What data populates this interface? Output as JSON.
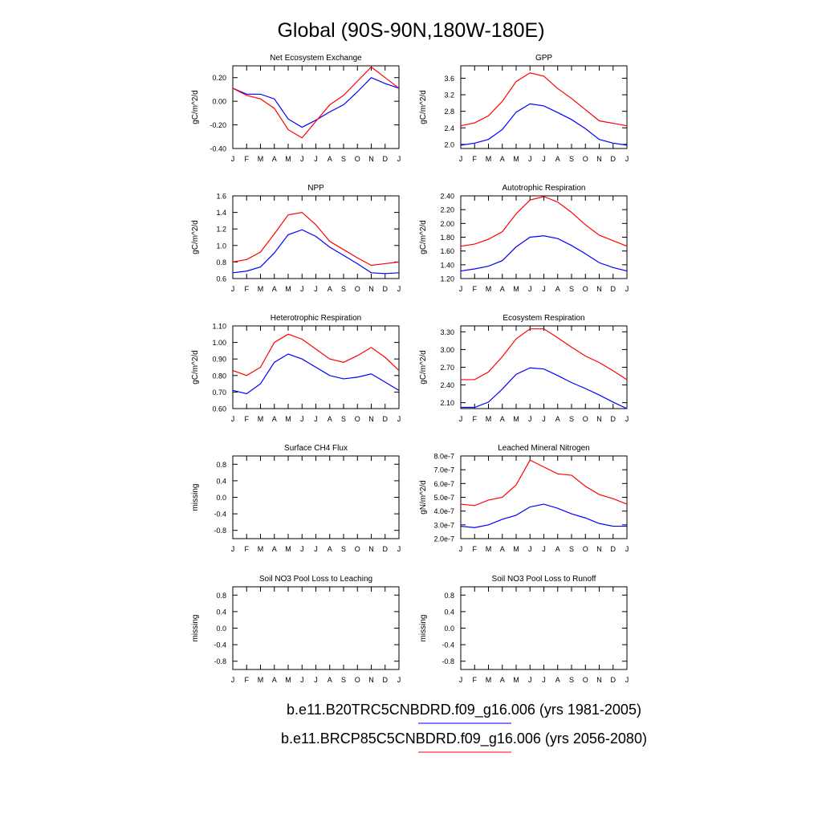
{
  "title": "Global (90S-90N,180W-180E)",
  "legend": [
    {
      "label": "b.e11.B20TRC5CNBDRD.f09_g16.006 (yrs 1981-2005)",
      "color": "#0000ff"
    },
    {
      "label": "b.e11.BRCP85C5CNBDRD.f09_g16.006 (yrs 2056-2080)",
      "color": "#ff0000"
    }
  ],
  "chart_data": [
    {
      "type": "line",
      "title": "Net Ecosystem Exchange",
      "ylabel": "gC/m^2/d",
      "categories": [
        "J",
        "F",
        "M",
        "A",
        "M",
        "J",
        "J",
        "A",
        "S",
        "O",
        "N",
        "D",
        "J"
      ],
      "ylim": [
        -0.4,
        0.3
      ],
      "yticks": [
        -0.4,
        -0.2,
        0.0,
        0.2
      ],
      "yticklabels": [
        "-0.40",
        "-0.20",
        "0.00",
        "0.20"
      ],
      "series": [
        {
          "color": "#0000ff",
          "values": [
            0.11,
            0.06,
            0.06,
            0.02,
            -0.15,
            -0.22,
            -0.16,
            -0.09,
            -0.03,
            0.08,
            0.2,
            0.15,
            0.11
          ]
        },
        {
          "color": "#ff0000",
          "values": [
            0.11,
            0.05,
            0.02,
            -0.06,
            -0.24,
            -0.31,
            -0.17,
            -0.03,
            0.05,
            0.17,
            0.29,
            0.2,
            0.11
          ]
        }
      ]
    },
    {
      "type": "line",
      "title": "GPP",
      "ylabel": "gC/m^2/d",
      "categories": [
        "J",
        "F",
        "M",
        "A",
        "M",
        "J",
        "J",
        "A",
        "S",
        "O",
        "N",
        "D",
        "J"
      ],
      "ylim": [
        1.9,
        3.9
      ],
      "yticks": [
        2.0,
        2.4,
        2.8,
        3.2,
        3.6
      ],
      "yticklabels": [
        "2.0",
        "2.4",
        "2.8",
        "3.2",
        "3.6"
      ],
      "series": [
        {
          "color": "#0000ff",
          "values": [
            1.98,
            2.03,
            2.12,
            2.36,
            2.78,
            2.98,
            2.93,
            2.77,
            2.6,
            2.38,
            2.12,
            2.03,
            1.98
          ]
        },
        {
          "color": "#ff0000",
          "values": [
            2.45,
            2.52,
            2.69,
            3.04,
            3.52,
            3.73,
            3.65,
            3.35,
            3.11,
            2.84,
            2.57,
            2.51,
            2.45
          ]
        }
      ]
    },
    {
      "type": "line",
      "title": "NPP",
      "ylabel": "gC/m^2/d",
      "categories": [
        "J",
        "F",
        "M",
        "A",
        "M",
        "J",
        "J",
        "A",
        "S",
        "O",
        "N",
        "D",
        "J"
      ],
      "ylim": [
        0.6,
        1.6
      ],
      "yticks": [
        0.6,
        0.8,
        1.0,
        1.2,
        1.4,
        1.6
      ],
      "yticklabels": [
        "0.6",
        "0.8",
        "1.0",
        "1.2",
        "1.4",
        "1.6"
      ],
      "series": [
        {
          "color": "#0000ff",
          "values": [
            0.67,
            0.69,
            0.74,
            0.91,
            1.13,
            1.19,
            1.11,
            0.98,
            0.88,
            0.78,
            0.67,
            0.66,
            0.67
          ]
        },
        {
          "color": "#ff0000",
          "values": [
            0.8,
            0.83,
            0.92,
            1.14,
            1.37,
            1.4,
            1.25,
            1.05,
            0.95,
            0.85,
            0.76,
            0.78,
            0.8
          ]
        }
      ]
    },
    {
      "type": "line",
      "title": "Autotrophic Respiration",
      "ylabel": "gC/m^2/d",
      "categories": [
        "J",
        "F",
        "M",
        "A",
        "M",
        "J",
        "J",
        "A",
        "S",
        "O",
        "N",
        "D",
        "J"
      ],
      "ylim": [
        1.2,
        2.4
      ],
      "yticks": [
        1.2,
        1.4,
        1.6,
        1.8,
        2.0,
        2.2,
        2.4
      ],
      "yticklabels": [
        "1.20",
        "1.40",
        "1.60",
        "1.80",
        "2.00",
        "2.20",
        "2.40"
      ],
      "series": [
        {
          "color": "#0000ff",
          "values": [
            1.31,
            1.34,
            1.38,
            1.46,
            1.66,
            1.8,
            1.82,
            1.78,
            1.68,
            1.56,
            1.43,
            1.36,
            1.31
          ]
        },
        {
          "color": "#ff0000",
          "values": [
            1.67,
            1.7,
            1.77,
            1.88,
            2.14,
            2.34,
            2.39,
            2.31,
            2.16,
            1.98,
            1.83,
            1.75,
            1.67
          ]
        }
      ]
    },
    {
      "type": "line",
      "title": "Heterotrophic Respiration",
      "ylabel": "gC/m^2/d",
      "categories": [
        "J",
        "F",
        "M",
        "A",
        "M",
        "J",
        "J",
        "A",
        "S",
        "O",
        "N",
        "D",
        "J"
      ],
      "ylim": [
        0.6,
        1.1
      ],
      "yticks": [
        0.6,
        0.7,
        0.8,
        0.9,
        1.0,
        1.1
      ],
      "yticklabels": [
        "0.60",
        "0.70",
        "0.80",
        "0.90",
        "1.00",
        "1.10"
      ],
      "series": [
        {
          "color": "#0000ff",
          "values": [
            0.71,
            0.69,
            0.75,
            0.88,
            0.93,
            0.9,
            0.85,
            0.8,
            0.78,
            0.79,
            0.81,
            0.76,
            0.71
          ]
        },
        {
          "color": "#ff0000",
          "values": [
            0.83,
            0.8,
            0.85,
            1.0,
            1.05,
            1.02,
            0.96,
            0.9,
            0.88,
            0.92,
            0.97,
            0.91,
            0.83
          ]
        }
      ]
    },
    {
      "type": "line",
      "title": "Ecosystem Respiration",
      "ylabel": "gC/m^2/d",
      "categories": [
        "J",
        "F",
        "M",
        "A",
        "M",
        "J",
        "J",
        "A",
        "S",
        "O",
        "N",
        "D",
        "J"
      ],
      "ylim": [
        2.0,
        3.4
      ],
      "yticks": [
        2.1,
        2.4,
        2.7,
        3.0,
        3.3
      ],
      "yticklabels": [
        "2.10",
        "2.40",
        "2.70",
        "3.00",
        "3.30"
      ],
      "series": [
        {
          "color": "#0000ff",
          "values": [
            2.02,
            2.02,
            2.11,
            2.33,
            2.58,
            2.69,
            2.67,
            2.56,
            2.44,
            2.34,
            2.23,
            2.11,
            2.0
          ]
        },
        {
          "color": "#ff0000",
          "values": [
            2.49,
            2.49,
            2.62,
            2.88,
            3.18,
            3.35,
            3.35,
            3.2,
            3.04,
            2.89,
            2.78,
            2.64,
            2.49
          ]
        }
      ]
    },
    {
      "type": "line",
      "title": "Surface CH4 Flux",
      "ylabel": "missing",
      "categories": [
        "J",
        "F",
        "M",
        "A",
        "M",
        "J",
        "J",
        "A",
        "S",
        "O",
        "N",
        "D",
        "J"
      ],
      "ylim": [
        -1.0,
        1.0
      ],
      "yticks": [
        -0.8,
        -0.4,
        0.0,
        0.4,
        0.8
      ],
      "yticklabels": [
        "-0.8",
        "-0.4",
        "0.0",
        "0.4",
        "0.8"
      ],
      "series": []
    },
    {
      "type": "line",
      "title": "Leached Mineral Nitrogen",
      "ylabel": "gN/m^2/d",
      "categories": [
        "J",
        "F",
        "M",
        "A",
        "M",
        "J",
        "J",
        "A",
        "S",
        "O",
        "N",
        "D",
        "J"
      ],
      "ylim": [
        2e-07,
        8e-07
      ],
      "yticks": [
        2e-07,
        3e-07,
        4e-07,
        5e-07,
        6e-07,
        7e-07,
        8e-07
      ],
      "yticklabels": [
        "2.0e-7",
        "3.0e-7",
        "4.0e-7",
        "5.0e-7",
        "6.0e-7",
        "7.0e-7",
        "8.0e-7"
      ],
      "series": [
        {
          "color": "#0000ff",
          "values": [
            2.9e-07,
            2.8e-07,
            3e-07,
            3.4e-07,
            3.7e-07,
            4.3e-07,
            4.5e-07,
            4.2e-07,
            3.8e-07,
            3.5e-07,
            3.1e-07,
            2.9e-07,
            2.9e-07
          ]
        },
        {
          "color": "#ff0000",
          "values": [
            4.5e-07,
            4.4e-07,
            4.8e-07,
            5e-07,
            5.9e-07,
            7.7e-07,
            7.2e-07,
            6.7e-07,
            6.6e-07,
            5.8e-07,
            5.2e-07,
            4.9e-07,
            4.5e-07
          ]
        }
      ]
    },
    {
      "type": "line",
      "title": "Soil NO3 Pool Loss to Leaching",
      "ylabel": "missing",
      "categories": [
        "J",
        "F",
        "M",
        "A",
        "M",
        "J",
        "J",
        "A",
        "S",
        "O",
        "N",
        "D",
        "J"
      ],
      "ylim": [
        -1.0,
        1.0
      ],
      "yticks": [
        -0.8,
        -0.4,
        0.0,
        0.4,
        0.8
      ],
      "yticklabels": [
        "-0.8",
        "-0.4",
        "0.0",
        "0.4",
        "0.8"
      ],
      "series": []
    },
    {
      "type": "line",
      "title": "Soil NO3 Pool Loss to Runoff",
      "ylabel": "missing",
      "categories": [
        "J",
        "F",
        "M",
        "A",
        "M",
        "J",
        "J",
        "A",
        "S",
        "O",
        "N",
        "D",
        "J"
      ],
      "ylim": [
        -1.0,
        1.0
      ],
      "yticks": [
        -0.8,
        -0.4,
        0.0,
        0.4,
        0.8
      ],
      "yticklabels": [
        "-0.8",
        "-0.4",
        "0.0",
        "0.4",
        "0.8"
      ],
      "series": []
    }
  ]
}
